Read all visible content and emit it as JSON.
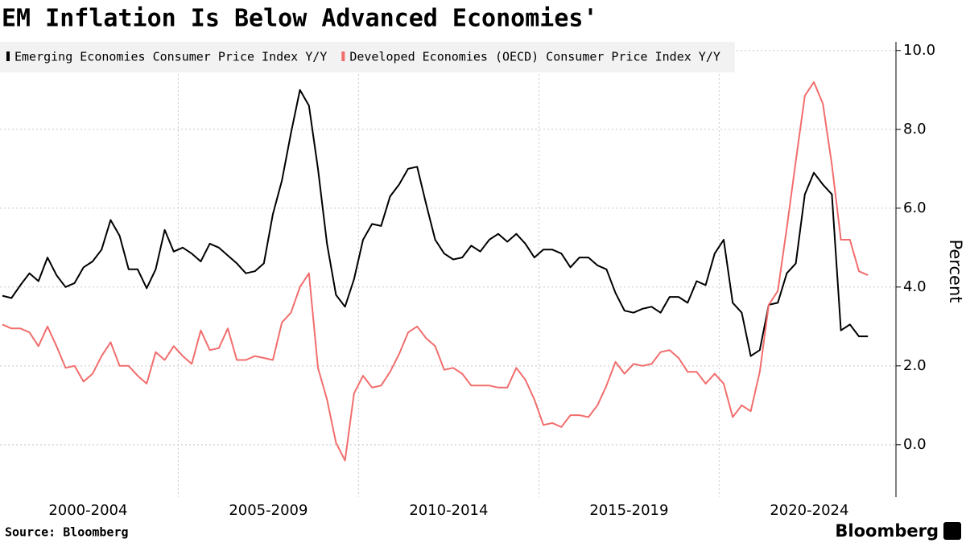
{
  "chart_data": {
    "type": "line",
    "title": "EM Inflation Is Below Advanced Economies'",
    "y_label": "Percent",
    "source": "Source: Bloomberg",
    "brand": "Bloomberg",
    "categories": [
      null,
      null,
      null,
      null,
      null,
      null,
      null,
      null,
      null,
      null,
      "2000-2004",
      null,
      null,
      null,
      null,
      null,
      null,
      null,
      null,
      null,
      null,
      null,
      null,
      null,
      null,
      null,
      null,
      null,
      null,
      null,
      "2005-2009",
      null,
      null,
      null,
      null,
      null,
      null,
      null,
      null,
      null,
      null,
      null,
      null,
      null,
      null,
      null,
      null,
      null,
      null,
      null,
      "2010-2014",
      null,
      null,
      null,
      null,
      null,
      null,
      null,
      null,
      null,
      null,
      null,
      null,
      null,
      null,
      null,
      null,
      null,
      null,
      null,
      "2015-2019",
      null,
      null,
      null,
      null,
      null,
      null,
      null,
      null,
      null,
      null,
      null,
      null,
      null,
      null,
      null,
      null,
      null,
      null,
      null,
      "2020-2024",
      null,
      null,
      null,
      null,
      null,
      null
    ],
    "series": [
      {
        "name": "Emerging Economies Consumer Price Index Y/Y",
        "color": "#000000",
        "values": [
          3.78,
          3.72,
          4.05,
          4.35,
          4.15,
          4.75,
          4.3,
          4.0,
          4.1,
          4.5,
          4.65,
          4.95,
          5.7,
          5.3,
          4.45,
          4.45,
          3.97,
          4.45,
          5.45,
          4.9,
          5.0,
          4.85,
          4.65,
          5.1,
          5.0,
          4.8,
          4.6,
          4.35,
          4.4,
          4.6,
          5.85,
          6.7,
          7.9,
          9.0,
          8.6,
          7.0,
          5.1,
          3.8,
          3.5,
          4.2,
          5.2,
          5.6,
          5.55,
          6.3,
          6.6,
          7.0,
          7.05,
          6.1,
          5.2,
          4.85,
          4.7,
          4.75,
          5.05,
          4.9,
          5.2,
          5.35,
          5.15,
          5.35,
          5.1,
          4.75,
          4.95,
          4.95,
          4.85,
          4.5,
          4.75,
          4.75,
          4.55,
          4.45,
          3.85,
          3.4,
          3.35,
          3.45,
          3.5,
          3.35,
          3.75,
          3.75,
          3.6,
          4.15,
          4.05,
          4.85,
          5.2,
          3.6,
          3.35,
          2.25,
          2.4,
          3.55,
          3.6,
          4.35,
          4.6,
          6.35,
          6.9,
          6.6,
          6.35,
          2.9,
          3.05,
          2.75,
          2.75
        ]
      },
      {
        "name": "Developed Economies (OECD) Consumer Price Index Y/Y",
        "color": "#f26d6d",
        "values": [
          3.05,
          2.95,
          2.95,
          2.85,
          2.5,
          3.0,
          2.5,
          1.95,
          2.0,
          1.6,
          1.8,
          2.25,
          2.6,
          2.0,
          2.0,
          1.75,
          1.55,
          2.35,
          2.15,
          2.5,
          2.25,
          2.05,
          2.9,
          2.4,
          2.45,
          2.95,
          2.15,
          2.15,
          2.25,
          2.2,
          2.15,
          3.1,
          3.35,
          4.0,
          4.35,
          1.95,
          1.15,
          0.05,
          -0.4,
          1.3,
          1.75,
          1.45,
          1.5,
          1.85,
          2.3,
          2.85,
          3.0,
          2.7,
          2.5,
          1.9,
          1.95,
          1.8,
          1.5,
          1.5,
          1.5,
          1.45,
          1.45,
          1.95,
          1.65,
          1.15,
          0.5,
          0.55,
          0.45,
          0.75,
          0.75,
          0.7,
          1.0,
          1.5,
          2.1,
          1.8,
          2.05,
          2.0,
          2.05,
          2.35,
          2.4,
          2.2,
          1.85,
          1.85,
          1.55,
          1.8,
          1.55,
          0.7,
          1.0,
          0.85,
          1.85,
          3.55,
          3.9,
          5.5,
          7.2,
          8.85,
          9.2,
          8.65,
          7.1,
          5.2,
          5.2,
          4.4,
          4.3
        ]
      }
    ],
    "ylim": [
      -1.33,
      10.22
    ],
    "yticks": [
      {
        "value": 0,
        "label": "0.0"
      },
      {
        "value": 2,
        "label": "2.0"
      },
      {
        "value": 4,
        "label": "4.0"
      },
      {
        "value": 6,
        "label": "6.0"
      },
      {
        "value": 8,
        "label": "8.0"
      },
      {
        "value": 10,
        "label": "10.0"
      }
    ],
    "grid": true,
    "legend": "top-left"
  }
}
